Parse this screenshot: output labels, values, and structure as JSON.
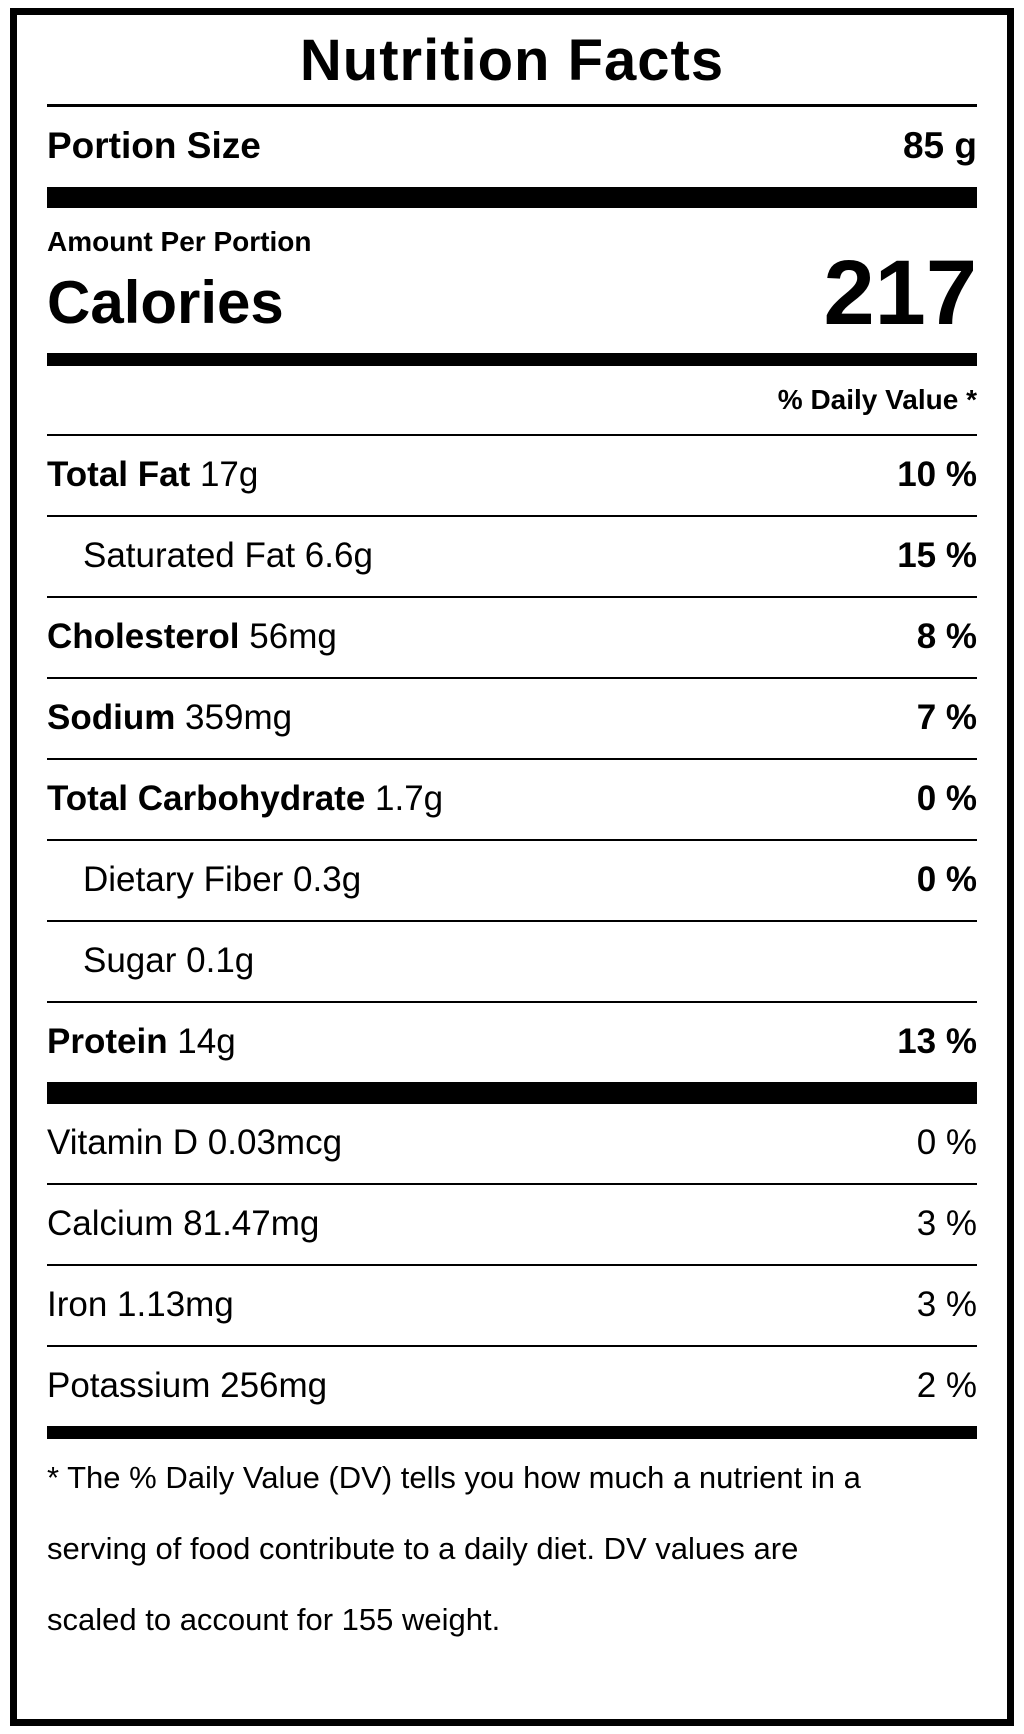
{
  "label": {
    "title": "Nutrition Facts",
    "portion": {
      "label": "Portion Size",
      "value": "85 g"
    },
    "amount_per_portion": "Amount Per Portion",
    "calories": {
      "label": "Calories",
      "value": "217"
    },
    "daily_value_header": "% Daily Value *",
    "rows": [
      {
        "name": "Total Fat",
        "amount": "17g",
        "dv": "10 %",
        "bold_name": true,
        "indent": false,
        "bold_dv": true
      },
      {
        "name": "Saturated Fat",
        "amount": "6.6g",
        "dv": "15 %",
        "bold_name": false,
        "indent": true,
        "bold_dv": true
      },
      {
        "name": "Cholesterol",
        "amount": "56mg",
        "dv": "8 %",
        "bold_name": true,
        "indent": false,
        "bold_dv": true
      },
      {
        "name": "Sodium",
        "amount": "359mg",
        "dv": "7 %",
        "bold_name": true,
        "indent": false,
        "bold_dv": true
      },
      {
        "name": "Total Carbohydrate",
        "amount": "1.7g",
        "dv": "0 %",
        "bold_name": true,
        "indent": false,
        "bold_dv": true
      },
      {
        "name": "Dietary Fiber",
        "amount": "0.3g",
        "dv": "0 %",
        "bold_name": false,
        "indent": true,
        "bold_dv": true
      },
      {
        "name": "Sugar",
        "amount": "0.1g",
        "dv": "",
        "bold_name": false,
        "indent": true,
        "bold_dv": false
      },
      {
        "name": "Protein",
        "amount": "14g",
        "dv": "13 %",
        "bold_name": true,
        "indent": false,
        "bold_dv": true
      }
    ],
    "micronutrient_rows": [
      {
        "name": "Vitamin D",
        "amount": "0.03mcg",
        "dv": "0 %",
        "bold_name": false,
        "indent": false,
        "bold_dv": false
      },
      {
        "name": "Calcium",
        "amount": "81.47mg",
        "dv": "3 %",
        "bold_name": false,
        "indent": false,
        "bold_dv": false
      },
      {
        "name": "Iron",
        "amount": "1.13mg",
        "dv": "3 %",
        "bold_name": false,
        "indent": false,
        "bold_dv": false
      },
      {
        "name": "Potassium",
        "amount": "256mg",
        "dv": "2 %",
        "bold_name": false,
        "indent": false,
        "bold_dv": false
      }
    ],
    "footnote_lines": [
      "* The % Daily Value (DV) tells you how much a nutrient in a",
      "serving of food contribute to a daily diet. DV values are",
      "scaled to account for 155 weight."
    ]
  },
  "colors": {
    "text": "#000000",
    "background": "#ffffff",
    "border": "#000000"
  }
}
